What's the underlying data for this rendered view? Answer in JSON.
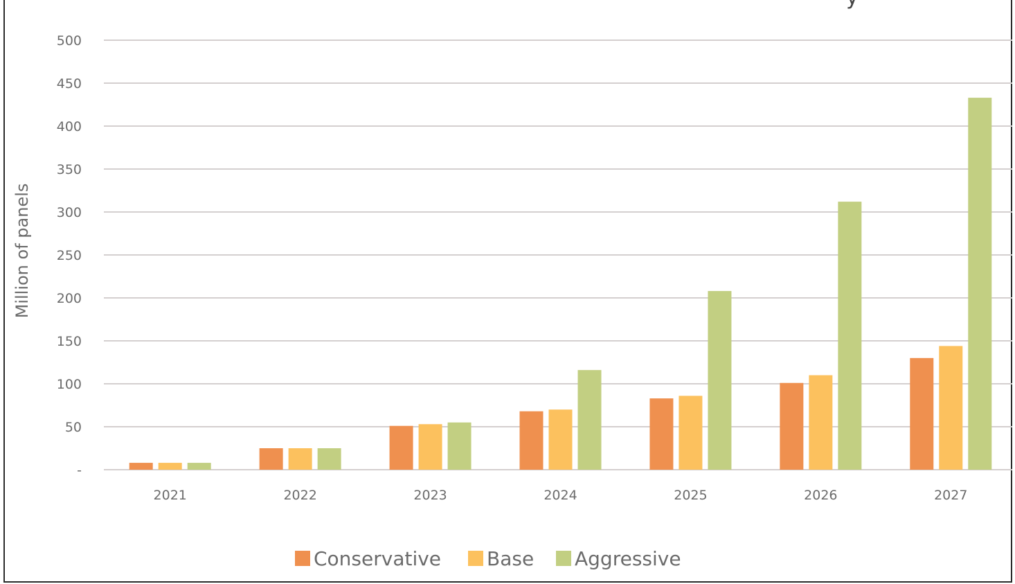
{
  "chart_data": {
    "type": "bar",
    "categories": [
      "2021",
      "2022",
      "2023",
      "2024",
      "2025",
      "2026",
      "2027"
    ],
    "series": [
      {
        "name": "Conservative",
        "values": [
          8,
          25,
          51,
          68,
          83,
          101,
          130
        ]
      },
      {
        "name": "Base",
        "values": [
          8,
          25,
          53,
          70,
          86,
          110,
          144
        ]
      },
      {
        "name": "Aggressive",
        "values": [
          8,
          25,
          55,
          116,
          208,
          312,
          433
        ]
      }
    ],
    "title": "",
    "xlabel": "",
    "ylabel": "Million of panels",
    "ylim": [
      0,
      500
    ],
    "yticks": [
      0,
      50,
      100,
      150,
      200,
      250,
      300,
      350,
      400,
      450,
      500
    ],
    "ytick_labels": [
      "-",
      "50",
      "100",
      "150",
      "200",
      "250",
      "300",
      "350",
      "400",
      "450",
      "500"
    ],
    "grid": true,
    "legend_position": "bottom",
    "colors": {
      "Conservative": "#ef904f",
      "Base": "#fcc15e",
      "Aggressive": "#c2cf82",
      "grid": "#d4cfcf",
      "text": "#6b6b6b"
    }
  }
}
